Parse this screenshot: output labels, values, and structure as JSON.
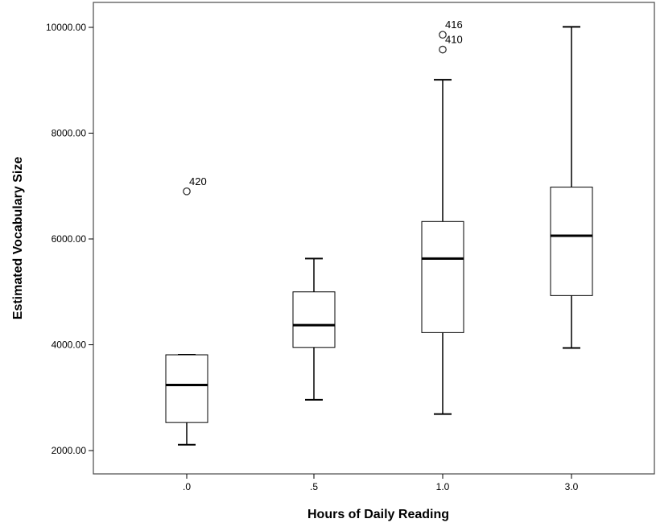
{
  "chart_data": {
    "type": "boxplot",
    "xlabel": "Hours of Daily Reading",
    "ylabel": "Estimated Vocabulary Size",
    "ylim": [
      1600,
      10450
    ],
    "yticks": [
      2000,
      4000,
      6000,
      8000,
      10000
    ],
    "ytick_labels": [
      "2000.00",
      "4000.00",
      "6000.00",
      "8000.00",
      "10000.00"
    ],
    "categories": [
      ".0",
      ".5",
      "1.0",
      "3.0"
    ],
    "grid": false,
    "boxes": [
      {
        "category": ".0",
        "min": 2110,
        "q1": 2530,
        "median": 3240,
        "q3": 3810,
        "max": 3810,
        "outliers": [
          {
            "value": 6900,
            "label": "420"
          }
        ]
      },
      {
        "category": ".5",
        "min": 2960,
        "q1": 3950,
        "median": 4370,
        "q3": 5000,
        "max": 5630,
        "outliers": []
      },
      {
        "category": "1.0",
        "min": 2690,
        "q1": 4230,
        "median": 5630,
        "q3": 6330,
        "max": 9010,
        "outliers": [
          {
            "value": 9860,
            "label": "416"
          },
          {
            "value": 9580,
            "label": "410"
          }
        ]
      },
      {
        "category": "3.0",
        "min": 3940,
        "q1": 4930,
        "median": 6060,
        "q3": 6980,
        "max": 10010,
        "outliers": []
      }
    ]
  }
}
